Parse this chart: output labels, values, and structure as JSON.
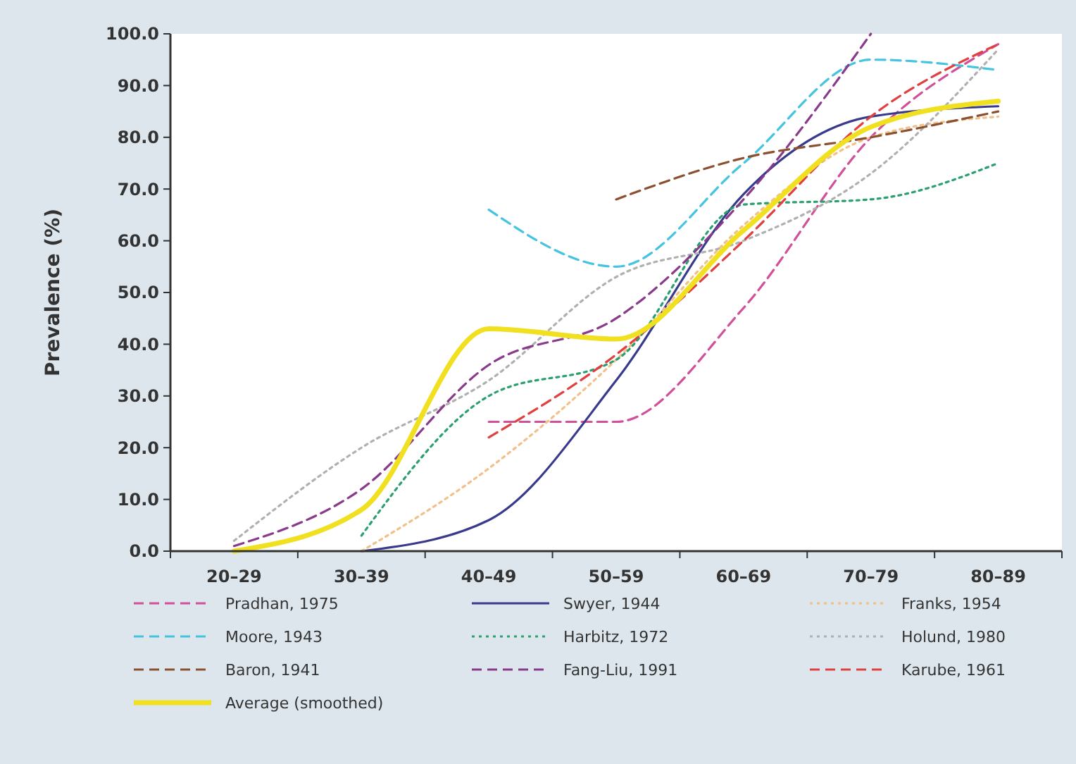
{
  "chart_data": {
    "type": "line",
    "ylabel": "Prevalence (%)",
    "categories": [
      "20–29",
      "30–39",
      "40–49",
      "50–59",
      "60–69",
      "70–79",
      "80–89"
    ],
    "ylim": [
      0,
      100
    ],
    "yticks": [
      {
        "value": 0,
        "label": "0.0"
      },
      {
        "value": 10,
        "label": "10.0"
      },
      {
        "value": 20,
        "label": "20.0"
      },
      {
        "value": 30,
        "label": "30.0"
      },
      {
        "value": 40,
        "label": "40.0"
      },
      {
        "value": 50,
        "label": "50.0"
      },
      {
        "value": 60,
        "label": "60.0"
      },
      {
        "value": 70,
        "label": "70.0"
      },
      {
        "value": 80,
        "label": "80.0"
      },
      {
        "value": 90,
        "label": "90.0"
      },
      {
        "value": 100,
        "label": "100.0"
      }
    ],
    "grid": false,
    "legend": "bottom",
    "marker": "none",
    "series": [
      {
        "name": "Pradhan, 1975",
        "color": "#d0509a",
        "line_style": "dashed",
        "values": [
          null,
          null,
          25,
          25,
          47,
          80,
          98
        ]
      },
      {
        "name": "Swyer, 1944",
        "color": "#3a3a8c",
        "line_style": "solid",
        "values": [
          null,
          0,
          6,
          33,
          69,
          84,
          86
        ]
      },
      {
        "name": "Franks, 1954",
        "color": "#f2c08a",
        "line_style": "dotted",
        "values": [
          null,
          0,
          16,
          37,
          63,
          80,
          84
        ]
      },
      {
        "name": "Moore, 1943",
        "color": "#44c4e0",
        "line_style": "dashed",
        "values": [
          null,
          null,
          66,
          55,
          75,
          95,
          93
        ]
      },
      {
        "name": "Harbitz, 1972",
        "color": "#2aa070",
        "line_style": "dotted",
        "values": [
          null,
          3,
          30,
          37,
          67,
          68,
          75
        ]
      },
      {
        "name": "Holund, 1980",
        "color": "#b0b0b0",
        "line_style": "dotted",
        "values": [
          2,
          20,
          33,
          53,
          60,
          73,
          97
        ]
      },
      {
        "name": "Baron, 1941",
        "color": "#8a5030",
        "line_style": "dashed",
        "values": [
          null,
          null,
          null,
          68,
          76,
          80,
          85
        ]
      },
      {
        "name": "Fang-Liu, 1991",
        "color": "#8a3a8a",
        "line_style": "dashed",
        "values": [
          1,
          12,
          36,
          45,
          68,
          100,
          null
        ]
      },
      {
        "name": "Karube, 1961",
        "color": "#e04040",
        "line_style": "dashed",
        "values": [
          null,
          null,
          22,
          38,
          60,
          84,
          98
        ]
      },
      {
        "name": "Average (smoothed)",
        "color": "#f0e020",
        "line_style": "solid",
        "values": [
          0,
          8,
          43,
          41,
          62,
          82,
          87
        ]
      }
    ]
  }
}
